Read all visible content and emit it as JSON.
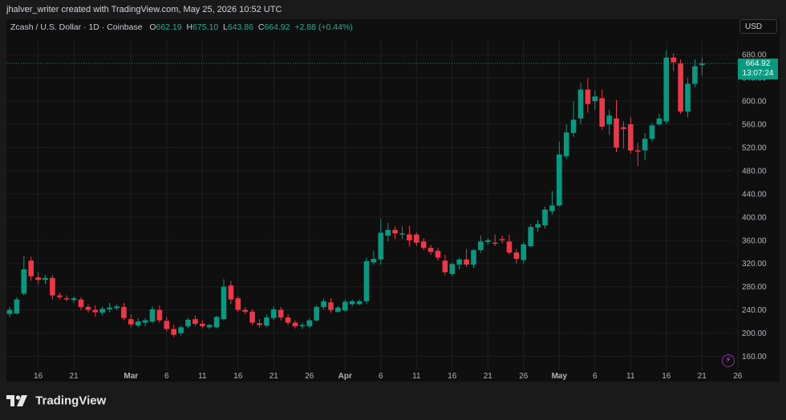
{
  "header": {
    "attribution": "jhalver_writer created with TradingView.com, May 25, 2026 10:52 UTC"
  },
  "legend": {
    "symbol": "Zcash / U.S. Dollar · 1D · Coinbase",
    "o_label": "O",
    "o_value": "662.19",
    "h_label": "H",
    "h_value": "675.10",
    "l_label": "L",
    "l_value": "643.86",
    "c_label": "C",
    "c_value": "664.92",
    "change": "+2.88 (+0.44%)"
  },
  "currency": "USD",
  "price_tag": {
    "price": "664.92",
    "countdown": "13:07:24"
  },
  "brand": {
    "name": "TradingView"
  },
  "colors": {
    "up": "#089981",
    "down": "#f23645",
    "background": "#0f0f0f",
    "grid": "#1f1f1f"
  },
  "chart_data": {
    "type": "candlestick",
    "title": "Zcash / U.S. Dollar · 1D · Coinbase",
    "ylim": [
      140,
      690
    ],
    "y_ticks": [
      160,
      200,
      240,
      280,
      320,
      360,
      400,
      440,
      480,
      520,
      560,
      600,
      640,
      680
    ],
    "x_ticks": [
      "16",
      "21",
      "Mar",
      "6",
      "11",
      "16",
      "21",
      "26",
      "Apr",
      "6",
      "11",
      "16",
      "21",
      "26",
      "May",
      "6",
      "11",
      "16",
      "21",
      "26"
    ],
    "last_price": 664.92,
    "candles": [
      {
        "o": 233,
        "h": 245,
        "l": 228,
        "c": 240
      },
      {
        "o": 234,
        "h": 262,
        "l": 232,
        "c": 258
      },
      {
        "o": 268,
        "h": 333,
        "l": 265,
        "c": 310
      },
      {
        "o": 325,
        "h": 332,
        "l": 290,
        "c": 298
      },
      {
        "o": 296,
        "h": 305,
        "l": 284,
        "c": 292
      },
      {
        "o": 292,
        "h": 300,
        "l": 285,
        "c": 295
      },
      {
        "o": 295,
        "h": 300,
        "l": 258,
        "c": 265
      },
      {
        "o": 265,
        "h": 270,
        "l": 258,
        "c": 262
      },
      {
        "o": 260,
        "h": 265,
        "l": 255,
        "c": 258
      },
      {
        "o": 257,
        "h": 263,
        "l": 252,
        "c": 260
      },
      {
        "o": 258,
        "h": 262,
        "l": 240,
        "c": 245
      },
      {
        "o": 245,
        "h": 250,
        "l": 235,
        "c": 240
      },
      {
        "o": 240,
        "h": 248,
        "l": 228,
        "c": 236
      },
      {
        "o": 235,
        "h": 246,
        "l": 230,
        "c": 242
      },
      {
        "o": 241,
        "h": 252,
        "l": 236,
        "c": 244
      },
      {
        "o": 243,
        "h": 249,
        "l": 240,
        "c": 246
      },
      {
        "o": 245,
        "h": 252,
        "l": 222,
        "c": 226
      },
      {
        "o": 224,
        "h": 232,
        "l": 210,
        "c": 215
      },
      {
        "o": 213,
        "h": 226,
        "l": 210,
        "c": 220
      },
      {
        "o": 218,
        "h": 226,
        "l": 212,
        "c": 222
      },
      {
        "o": 220,
        "h": 246,
        "l": 217,
        "c": 241
      },
      {
        "o": 240,
        "h": 248,
        "l": 218,
        "c": 222
      },
      {
        "o": 221,
        "h": 228,
        "l": 203,
        "c": 207
      },
      {
        "o": 207,
        "h": 215,
        "l": 193,
        "c": 197
      },
      {
        "o": 200,
        "h": 213,
        "l": 196,
        "c": 210
      },
      {
        "o": 212,
        "h": 226,
        "l": 208,
        "c": 223
      },
      {
        "o": 224,
        "h": 230,
        "l": 212,
        "c": 216
      },
      {
        "o": 216,
        "h": 222,
        "l": 208,
        "c": 212
      },
      {
        "o": 210,
        "h": 216,
        "l": 207,
        "c": 214
      },
      {
        "o": 210,
        "h": 230,
        "l": 208,
        "c": 228
      },
      {
        "o": 224,
        "h": 293,
        "l": 222,
        "c": 280
      },
      {
        "o": 282,
        "h": 290,
        "l": 250,
        "c": 258
      },
      {
        "o": 260,
        "h": 264,
        "l": 236,
        "c": 240
      },
      {
        "o": 240,
        "h": 245,
        "l": 233,
        "c": 237
      },
      {
        "o": 237,
        "h": 241,
        "l": 214,
        "c": 218
      },
      {
        "o": 217,
        "h": 224,
        "l": 210,
        "c": 214
      },
      {
        "o": 213,
        "h": 232,
        "l": 210,
        "c": 227
      },
      {
        "o": 226,
        "h": 246,
        "l": 222,
        "c": 241
      },
      {
        "o": 240,
        "h": 245,
        "l": 222,
        "c": 227
      },
      {
        "o": 227,
        "h": 233,
        "l": 214,
        "c": 218
      },
      {
        "o": 218,
        "h": 222,
        "l": 208,
        "c": 212
      },
      {
        "o": 212,
        "h": 218,
        "l": 207,
        "c": 214
      },
      {
        "o": 212,
        "h": 226,
        "l": 208,
        "c": 222
      },
      {
        "o": 222,
        "h": 248,
        "l": 220,
        "c": 245
      },
      {
        "o": 245,
        "h": 260,
        "l": 240,
        "c": 255
      },
      {
        "o": 253,
        "h": 260,
        "l": 235,
        "c": 240
      },
      {
        "o": 237,
        "h": 247,
        "l": 235,
        "c": 244
      },
      {
        "o": 239,
        "h": 258,
        "l": 237,
        "c": 254
      },
      {
        "o": 250,
        "h": 258,
        "l": 246,
        "c": 255
      },
      {
        "o": 250,
        "h": 258,
        "l": 248,
        "c": 255
      },
      {
        "o": 255,
        "h": 330,
        "l": 250,
        "c": 324
      },
      {
        "o": 322,
        "h": 342,
        "l": 318,
        "c": 328
      },
      {
        "o": 327,
        "h": 397,
        "l": 318,
        "c": 373
      },
      {
        "o": 368,
        "h": 390,
        "l": 358,
        "c": 378
      },
      {
        "o": 378,
        "h": 384,
        "l": 362,
        "c": 372
      },
      {
        "o": 370,
        "h": 384,
        "l": 362,
        "c": 372
      },
      {
        "o": 370,
        "h": 385,
        "l": 350,
        "c": 360
      },
      {
        "o": 370,
        "h": 374,
        "l": 350,
        "c": 356
      },
      {
        "o": 358,
        "h": 364,
        "l": 343,
        "c": 347
      },
      {
        "o": 347,
        "h": 352,
        "l": 335,
        "c": 340
      },
      {
        "o": 342,
        "h": 347,
        "l": 325,
        "c": 330
      },
      {
        "o": 325,
        "h": 335,
        "l": 300,
        "c": 305
      },
      {
        "o": 302,
        "h": 322,
        "l": 298,
        "c": 319
      },
      {
        "o": 318,
        "h": 330,
        "l": 310,
        "c": 327
      },
      {
        "o": 327,
        "h": 345,
        "l": 314,
        "c": 318
      },
      {
        "o": 318,
        "h": 345,
        "l": 312,
        "c": 343
      },
      {
        "o": 343,
        "h": 368,
        "l": 338,
        "c": 358
      },
      {
        "o": 357,
        "h": 364,
        "l": 352,
        "c": 360
      },
      {
        "o": 356,
        "h": 370,
        "l": 350,
        "c": 354
      },
      {
        "o": 362,
        "h": 368,
        "l": 355,
        "c": 360
      },
      {
        "o": 358,
        "h": 370,
        "l": 335,
        "c": 339
      },
      {
        "o": 339,
        "h": 345,
        "l": 320,
        "c": 328
      },
      {
        "o": 326,
        "h": 357,
        "l": 320,
        "c": 353
      },
      {
        "o": 350,
        "h": 388,
        "l": 348,
        "c": 383
      },
      {
        "o": 382,
        "h": 395,
        "l": 375,
        "c": 388
      },
      {
        "o": 386,
        "h": 418,
        "l": 380,
        "c": 413
      },
      {
        "o": 410,
        "h": 445,
        "l": 404,
        "c": 420
      },
      {
        "o": 420,
        "h": 530,
        "l": 418,
        "c": 508
      },
      {
        "o": 505,
        "h": 560,
        "l": 500,
        "c": 546
      },
      {
        "o": 545,
        "h": 600,
        "l": 538,
        "c": 568
      },
      {
        "o": 570,
        "h": 632,
        "l": 560,
        "c": 620
      },
      {
        "o": 620,
        "h": 640,
        "l": 580,
        "c": 595
      },
      {
        "o": 600,
        "h": 618,
        "l": 585,
        "c": 608
      },
      {
        "o": 605,
        "h": 620,
        "l": 550,
        "c": 556
      },
      {
        "o": 560,
        "h": 585,
        "l": 542,
        "c": 575
      },
      {
        "o": 570,
        "h": 602,
        "l": 512,
        "c": 520
      },
      {
        "o": 555,
        "h": 565,
        "l": 518,
        "c": 552
      },
      {
        "o": 560,
        "h": 572,
        "l": 510,
        "c": 515
      },
      {
        "o": 515,
        "h": 528,
        "l": 488,
        "c": 513
      },
      {
        "o": 515,
        "h": 545,
        "l": 498,
        "c": 535
      },
      {
        "o": 535,
        "h": 562,
        "l": 530,
        "c": 558
      },
      {
        "o": 560,
        "h": 578,
        "l": 558,
        "c": 570
      },
      {
        "o": 565,
        "h": 688,
        "l": 560,
        "c": 675
      },
      {
        "o": 675,
        "h": 682,
        "l": 652,
        "c": 667
      },
      {
        "o": 665,
        "h": 672,
        "l": 578,
        "c": 582
      },
      {
        "o": 582,
        "h": 640,
        "l": 572,
        "c": 630
      },
      {
        "o": 630,
        "h": 672,
        "l": 624,
        "c": 660
      },
      {
        "o": 662.19,
        "h": 675.1,
        "l": 643.86,
        "c": 664.92
      }
    ]
  }
}
